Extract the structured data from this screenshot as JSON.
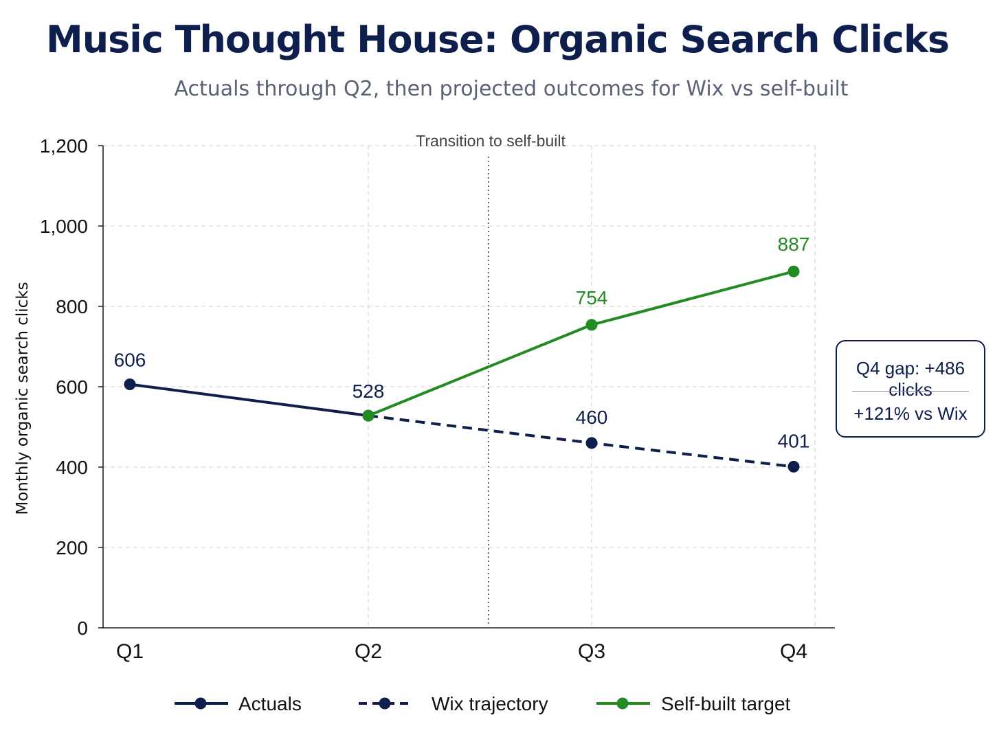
{
  "chart_data": {
    "type": "line",
    "title": "Music Thought House: Organic Search Clicks",
    "subtitle": "Actuals through Q2, then projected outcomes for Wix vs self-built",
    "xlabel": "",
    "ylabel": "Monthly organic search clicks",
    "categories": [
      "Q1",
      "Q2",
      "Q3",
      "Q4"
    ],
    "ylim": [
      0,
      1200
    ],
    "yticks": [
      0,
      200,
      400,
      600,
      800,
      1000,
      1200
    ],
    "ytick_labels": [
      "0",
      "200",
      "400",
      "600",
      "800",
      "1,000",
      "1,200"
    ],
    "grid": true,
    "legend_position": "bottom",
    "series": [
      {
        "name": "Actuals",
        "x": [
          "Q1",
          "Q2"
        ],
        "values": [
          606,
          528
        ],
        "labels": [
          "606",
          "528"
        ],
        "color": "#0f1f4d",
        "style": "solid"
      },
      {
        "name": "Wix trajectory",
        "x": [
          "Q2",
          "Q3",
          "Q4"
        ],
        "values": [
          528,
          460,
          401
        ],
        "labels": [
          "",
          "460",
          "401"
        ],
        "color": "#0f1f4d",
        "style": "dashed"
      },
      {
        "name": "Self-built target",
        "x": [
          "Q2",
          "Q3",
          "Q4"
        ],
        "values": [
          528,
          754,
          887
        ],
        "labels": [
          "",
          "754",
          "887"
        ],
        "color": "#228b22",
        "style": "solid"
      }
    ],
    "transition_marker": {
      "between": [
        "Q2",
        "Q3"
      ],
      "label": "Transition to self-built"
    },
    "callout": {
      "line1": "Q4 gap: +486 clicks",
      "line2": "+121% vs Wix"
    }
  }
}
